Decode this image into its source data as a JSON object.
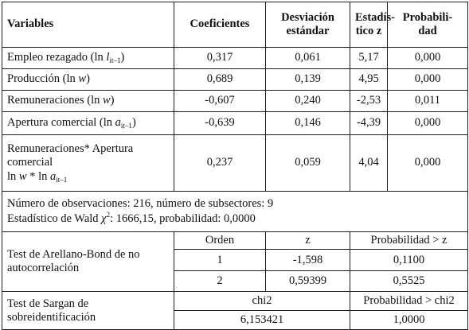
{
  "header": {
    "variables": "Variables",
    "coeficientes": "Coeficientes",
    "desviacion_1": "Desviación",
    "desviacion_2": "estándar",
    "estadistico_1": "Estadís-",
    "estadistico_2": "tico z",
    "probabilidad_1": "Probabili-",
    "probabilidad_2": "dad"
  },
  "rows": [
    {
      "var_pre": "Empleo rezagado (ln ",
      "var_it": "l",
      "var_sub": "it–1",
      "var_post": ")",
      "coef": "0,317",
      "desv": "0,061",
      "z": "5,17",
      "prob": "0,000"
    },
    {
      "var_pre": "Producción (ln ",
      "var_it": "w",
      "var_sub": "",
      "var_post": ")",
      "coef": "0,689",
      "desv": "0,139",
      "z": "4,95",
      "prob": "0,000"
    },
    {
      "var_pre": "Remuneraciones (ln ",
      "var_it": "w",
      "var_sub": "",
      "var_post": ")",
      "coef": "-0,607",
      "desv": "0,240",
      "z": "-2,53",
      "prob": "0,011"
    },
    {
      "var_pre": "Apertura comercial (ln ",
      "var_it": "a",
      "var_sub": "it–1",
      "var_post": ")",
      "coef": "-0,639",
      "desv": "0,146",
      "z": "-4,39",
      "prob": "0,000"
    },
    {
      "line1": "Remuneraciones* Apertura",
      "line2": "comercial",
      "line3_a": "ln ",
      "line3_w": "w",
      "line3_b": " * ln ",
      "line3_a2": "a",
      "line3_sub": "it–1",
      "coef": "0,237",
      "desv": "0,059",
      "z": "4,04",
      "prob": "0,000"
    }
  ],
  "notes": {
    "line1": "Número de observaciones: 216, número de subsectores: 9",
    "line2_a": "Estadístico de Wald ",
    "line2_chi": "χ",
    "line2_sup": "2",
    "line2_b": ": 1666,15, probabilidad: 0,0000"
  },
  "arellano": {
    "label": "Test de Arellano-Bond de no autocorrelación",
    "col_orden": "Orden",
    "col_z": "z",
    "col_prob": "Probabilidad > z",
    "rows": [
      {
        "orden": "1",
        "z": "-1,598",
        "prob": "0,1100"
      },
      {
        "orden": "2",
        "z": "0,59399",
        "prob": "0,5525"
      }
    ]
  },
  "sargan": {
    "label": "Test de Sargan de sobreidentificación",
    "col_chi2": "chi2",
    "col_prob": "Probabilidad > chi2",
    "chi2": "6,153421",
    "prob": "1,0000"
  }
}
